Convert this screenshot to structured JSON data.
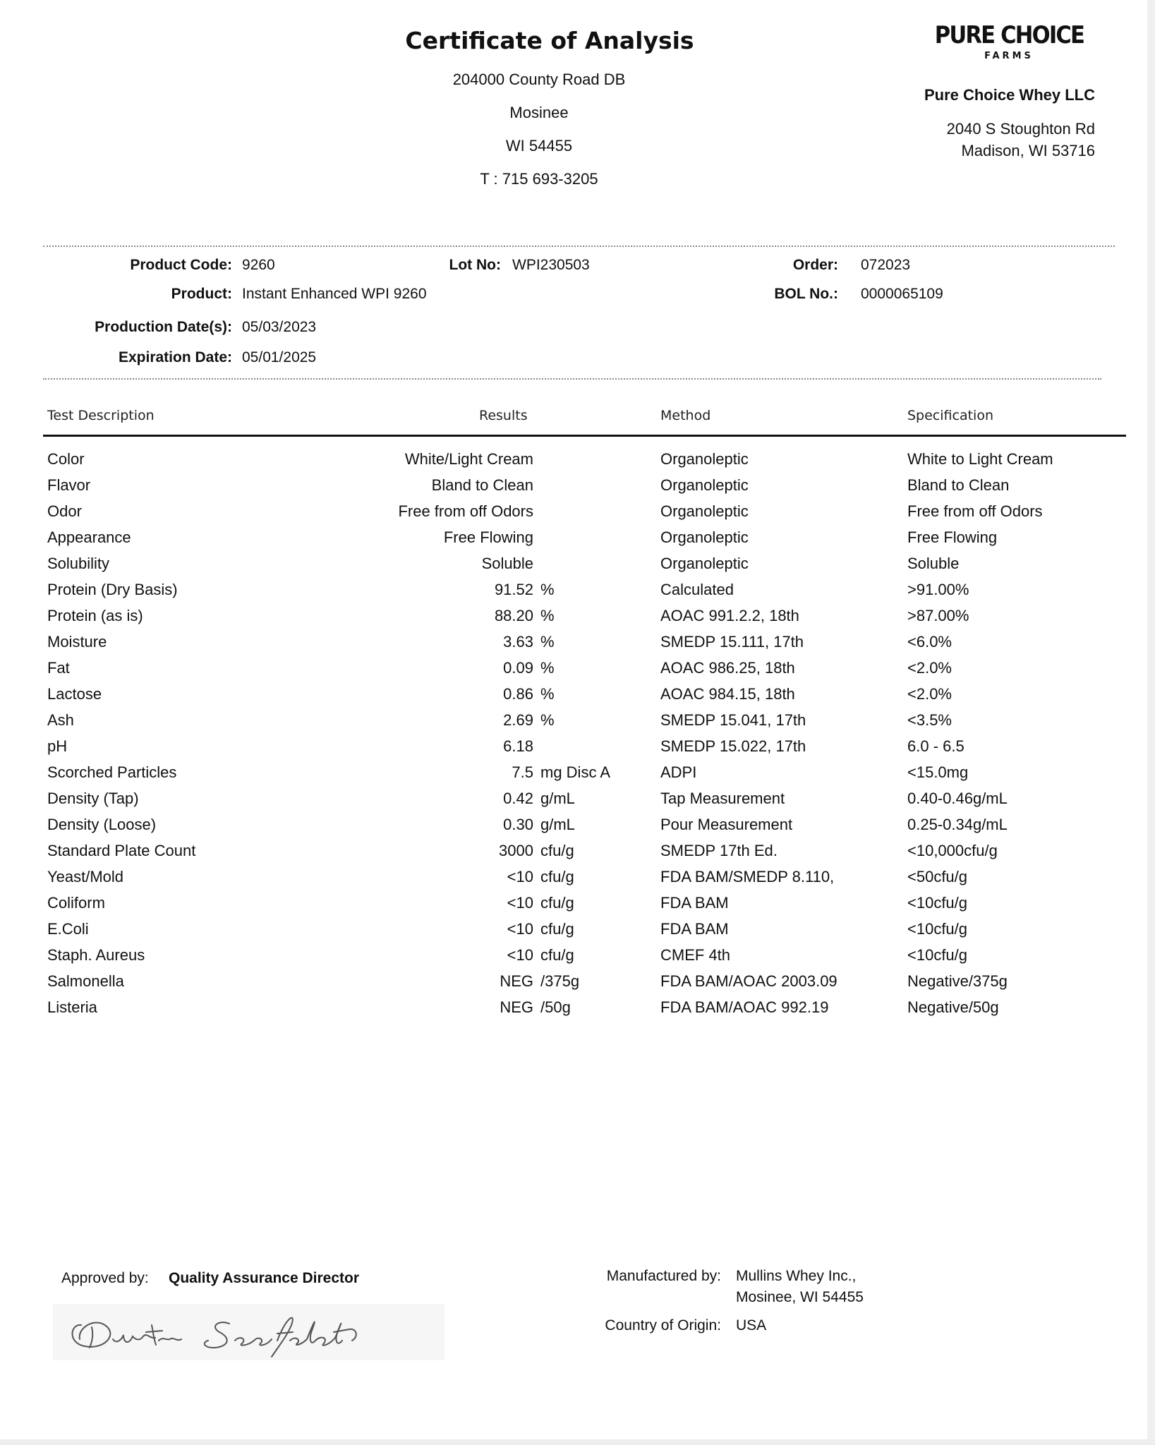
{
  "header": {
    "title": "Certificate of Analysis",
    "address_lines": [
      "204000 County Road DB",
      "Mosinee",
      "WI 54455",
      "T : 715 693-3205"
    ]
  },
  "company": {
    "logo_text": "PURE CHOICE",
    "logo_sub": "FARMS",
    "name": "Pure Choice Whey LLC",
    "address_line1": "2040 S Stoughton Rd",
    "address_line2": "Madison, WI 53716"
  },
  "info": {
    "product_code_label": "Product Code:",
    "product_code": "9260",
    "lot_label": "Lot No:",
    "lot": "WPI230503",
    "order_label": "Order:",
    "order": "072023",
    "product_label": "Product:",
    "product": "Instant Enhanced WPI 9260",
    "bol_label": "BOL No.:",
    "bol": "0000065109",
    "production_label": "Production Date(s):",
    "production": "05/03/2023",
    "expiration_label": "Expiration Date:",
    "expiration": "05/01/2025"
  },
  "table": {
    "headers": [
      "Test Description",
      "Results",
      "Method",
      "Specification"
    ],
    "rows": [
      {
        "desc": "Color",
        "value": "White/Light Cream",
        "unit": "",
        "method": "Organoleptic",
        "spec": "White to Light Cream"
      },
      {
        "desc": "Flavor",
        "value": "Bland to Clean",
        "unit": "",
        "method": "Organoleptic",
        "spec": "Bland to Clean"
      },
      {
        "desc": "Odor",
        "value": "Free from off Odors",
        "unit": "",
        "method": "Organoleptic",
        "spec": "Free from off Odors"
      },
      {
        "desc": "Appearance",
        "value": "Free Flowing",
        "unit": "",
        "method": "Organoleptic",
        "spec": "Free Flowing"
      },
      {
        "desc": "Solubility",
        "value": "Soluble",
        "unit": "",
        "method": "Organoleptic",
        "spec": "Soluble"
      },
      {
        "desc": "Protein (Dry Basis)",
        "value": "91.52",
        "unit": "%",
        "method": "Calculated",
        "spec": ">91.00%"
      },
      {
        "desc": "Protein (as is)",
        "value": "88.20",
        "unit": "%",
        "method": "AOAC 991.2.2, 18th",
        "spec": ">87.00%"
      },
      {
        "desc": "Moisture",
        "value": "3.63",
        "unit": "%",
        "method": "SMEDP 15.111, 17th",
        "spec": "<6.0%"
      },
      {
        "desc": "Fat",
        "value": "0.09",
        "unit": "%",
        "method": "AOAC 986.25, 18th",
        "spec": "<2.0%"
      },
      {
        "desc": "Lactose",
        "value": "0.86",
        "unit": "%",
        "method": "AOAC 984.15, 18th",
        "spec": "<2.0%"
      },
      {
        "desc": "Ash",
        "value": "2.69",
        "unit": "%",
        "method": "SMEDP 15.041, 17th",
        "spec": "<3.5%"
      },
      {
        "desc": "pH",
        "value": "6.18",
        "unit": "",
        "method": "SMEDP 15.022, 17th",
        "spec": "6.0 - 6.5"
      },
      {
        "desc": "Scorched Particles",
        "value": "7.5",
        "unit": "mg Disc A",
        "method": "ADPI",
        "spec": "<15.0mg"
      },
      {
        "desc": "Density (Tap)",
        "value": "0.42",
        "unit": "g/mL",
        "method": "Tap Measurement",
        "spec": "0.40-0.46g/mL"
      },
      {
        "desc": "Density (Loose)",
        "value": "0.30",
        "unit": "g/mL",
        "method": "Pour Measurement",
        "spec": "0.25-0.34g/mL"
      },
      {
        "desc": "Standard Plate Count",
        "value": "3000",
        "unit": "cfu/g",
        "method": "SMEDP 17th Ed.",
        "spec": "<10,000cfu/g"
      },
      {
        "desc": "Yeast/Mold",
        "value": "<10",
        "unit": "cfu/g",
        "method": "FDA BAM/SMEDP 8.110,",
        "spec": "<50cfu/g"
      },
      {
        "desc": "Coliform",
        "value": "<10",
        "unit": "cfu/g",
        "method": "FDA BAM",
        "spec": "<10cfu/g"
      },
      {
        "desc": "E.Coli",
        "value": "<10",
        "unit": "cfu/g",
        "method": "FDA BAM",
        "spec": "<10cfu/g"
      },
      {
        "desc": "Staph. Aureus",
        "value": "<10",
        "unit": "cfu/g",
        "method": "CMEF 4th",
        "spec": "<10cfu/g"
      },
      {
        "desc": "Salmonella",
        "value": "NEG",
        "unit": "/375g",
        "method": "FDA BAM/AOAC 2003.09",
        "spec": "Negative/375g"
      },
      {
        "desc": "Listeria",
        "value": "NEG",
        "unit": "/50g",
        "method": "FDA BAM/AOAC 992.19",
        "spec": "Negative/50g"
      }
    ]
  },
  "footer": {
    "approved_label": "Approved by:",
    "approved_by": "Quality Assurance Director",
    "signature_text": "Dustin Seefeldt",
    "manufactured_label": "Manufactured by:",
    "manufacturer_line1": "Mullins Whey Inc.,",
    "manufacturer_line2": "Mosinee, WI 54455",
    "origin_label": "Country of Origin:",
    "origin": "USA"
  }
}
